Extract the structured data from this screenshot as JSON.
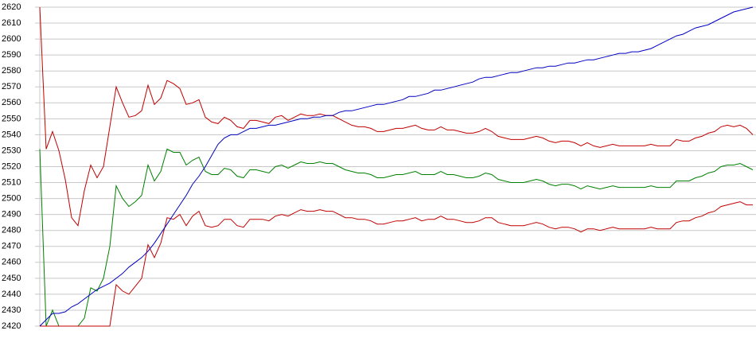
{
  "chart_data": {
    "type": "line",
    "categories": [
      null,
      null,
      null,
      null,
      null,
      null,
      null,
      null,
      null,
      null,
      null,
      null,
      null,
      null,
      null,
      null,
      null,
      null,
      null,
      null,
      null,
      null,
      null,
      null,
      null,
      null,
      null,
      null,
      null,
      null,
      null,
      null,
      null,
      null,
      null,
      null,
      null,
      null,
      null,
      null,
      null,
      null,
      null,
      null,
      null,
      null,
      null,
      null,
      null,
      null,
      null,
      null,
      null,
      null,
      null,
      null,
      null,
      null,
      null,
      null,
      null,
      null,
      null,
      null,
      null,
      null,
      null,
      null,
      null,
      null,
      null,
      null,
      null,
      null,
      null,
      null,
      null,
      null,
      null,
      null,
      null,
      null,
      null,
      null,
      null,
      null,
      null,
      null,
      null,
      null,
      null,
      null,
      null,
      null,
      null,
      null,
      null,
      null,
      null,
      null,
      null,
      null,
      null,
      null,
      null,
      null,
      null,
      null,
      null,
      null,
      null,
      null,
      null
    ],
    "series": [
      {
        "color": "#c00000",
        "values": [
          2620,
          2531,
          2542,
          2530,
          2512,
          2488,
          2483,
          2505,
          2521,
          2513,
          2520,
          2545,
          2570,
          2560,
          2551,
          2552,
          2555,
          2571,
          2559,
          2563,
          2574,
          2572,
          2569,
          2559,
          2560,
          2562,
          2551,
          2548,
          2547,
          2551,
          2549,
          2545,
          2544,
          2549,
          2549,
          2548,
          2547,
          2551,
          2552,
          2549,
          2551,
          2553,
          2552,
          2552,
          2553,
          2552,
          2552,
          2550,
          2548,
          2546,
          2545,
          2545,
          2544,
          2542,
          2542,
          2543,
          2544,
          2544,
          2545,
          2546,
          2544,
          2543,
          2543,
          2545,
          2543,
          2543,
          2542,
          2541,
          2541,
          2542,
          2544,
          2542,
          2539,
          2538,
          2537,
          2537,
          2537,
          2538,
          2539,
          2538,
          2536,
          2535,
          2536,
          2536,
          2535,
          2533,
          2535,
          2533,
          2532,
          2533,
          2534,
          2533,
          2533,
          2533,
          2533,
          2533,
          2534,
          2533,
          2533,
          2533,
          2537,
          2536,
          2536,
          2538,
          2539,
          2541,
          2542,
          2545,
          2546,
          2545,
          2546,
          2544,
          2540
        ]
      },
      {
        "color": "#008000",
        "values": [
          2531,
          2420,
          2430,
          2420,
          2420,
          2420,
          2420,
          2425,
          2444,
          2442,
          2450,
          2470,
          2508,
          2500,
          2495,
          2498,
          2502,
          2521,
          2511,
          2517,
          2531,
          2529,
          2529,
          2521,
          2524,
          2526,
          2517,
          2515,
          2515,
          2519,
          2518,
          2514,
          2513,
          2518,
          2518,
          2517,
          2516,
          2520,
          2521,
          2519,
          2521,
          2523,
          2522,
          2522,
          2523,
          2522,
          2522,
          2520,
          2518,
          2517,
          2516,
          2516,
          2515,
          2513,
          2513,
          2514,
          2515,
          2515,
          2516,
          2517,
          2515,
          2515,
          2515,
          2517,
          2515,
          2515,
          2514,
          2513,
          2513,
          2514,
          2516,
          2515,
          2512,
          2511,
          2510,
          2510,
          2510,
          2511,
          2512,
          2511,
          2509,
          2508,
          2509,
          2509,
          2508,
          2506,
          2508,
          2507,
          2506,
          2507,
          2508,
          2507,
          2507,
          2507,
          2507,
          2507,
          2508,
          2507,
          2507,
          2507,
          2511,
          2511,
          2511,
          2513,
          2514,
          2516,
          2517,
          2520,
          2521,
          2521,
          2522,
          2520,
          2518
        ]
      },
      {
        "color": "#c00000",
        "values": [
          2420,
          2420,
          2420,
          2420,
          2420,
          2420,
          2420,
          2420,
          2420,
          2420,
          2420,
          2420,
          2446,
          2442,
          2440,
          2445,
          2450,
          2471,
          2463,
          2472,
          2488,
          2487,
          2490,
          2483,
          2489,
          2492,
          2483,
          2482,
          2483,
          2487,
          2487,
          2483,
          2482,
          2487,
          2487,
          2487,
          2486,
          2489,
          2490,
          2489,
          2491,
          2493,
          2492,
          2492,
          2493,
          2492,
          2492,
          2490,
          2488,
          2488,
          2487,
          2487,
          2486,
          2484,
          2484,
          2485,
          2486,
          2486,
          2487,
          2488,
          2486,
          2487,
          2487,
          2489,
          2487,
          2487,
          2486,
          2485,
          2485,
          2486,
          2488,
          2488,
          2485,
          2484,
          2483,
          2483,
          2483,
          2484,
          2485,
          2484,
          2482,
          2481,
          2482,
          2482,
          2481,
          2479,
          2481,
          2481,
          2480,
          2481,
          2482,
          2481,
          2481,
          2481,
          2481,
          2481,
          2482,
          2481,
          2481,
          2481,
          2485,
          2486,
          2486,
          2488,
          2489,
          2491,
          2492,
          2495,
          2496,
          2497,
          2498,
          2496,
          2496
        ]
      },
      {
        "color": "#0000c0",
        "values": [
          2420,
          2424,
          2428,
          2428,
          2429,
          2432,
          2434,
          2437,
          2440,
          2443,
          2445,
          2447,
          2450,
          2453,
          2457,
          2460,
          2463,
          2467,
          2472,
          2478,
          2484,
          2490,
          2496,
          2502,
          2509,
          2514,
          2520,
          2527,
          2534,
          2538,
          2540,
          2540,
          2542,
          2544,
          2544,
          2545,
          2546,
          2546,
          2547,
          2548,
          2549,
          2550,
          2550,
          2551,
          2551,
          2552,
          2552,
          2554,
          2555,
          2555,
          2556,
          2557,
          2558,
          2559,
          2559,
          2560,
          2561,
          2562,
          2564,
          2564,
          2565,
          2566,
          2568,
          2568,
          2569,
          2570,
          2571,
          2572,
          2573,
          2575,
          2576,
          2576,
          2577,
          2578,
          2579,
          2579,
          2580,
          2581,
          2582,
          2582,
          2583,
          2583,
          2584,
          2585,
          2585,
          2586,
          2587,
          2587,
          2588,
          2589,
          2590,
          2591,
          2591,
          2592,
          2592,
          2593,
          2594,
          2596,
          2598,
          2600,
          2602,
          2603,
          2605,
          2607,
          2608,
          2609,
          2611,
          2613,
          2615,
          2617,
          2618,
          2619,
          2620
        ]
      }
    ],
    "ylim": [
      2420,
      2620
    ],
    "yticks": [
      2420,
      2430,
      2440,
      2450,
      2460,
      2470,
      2480,
      2490,
      2500,
      2510,
      2520,
      2530,
      2540,
      2550,
      2560,
      2570,
      2580,
      2590,
      2600,
      2610,
      2620
    ],
    "grid": true
  }
}
